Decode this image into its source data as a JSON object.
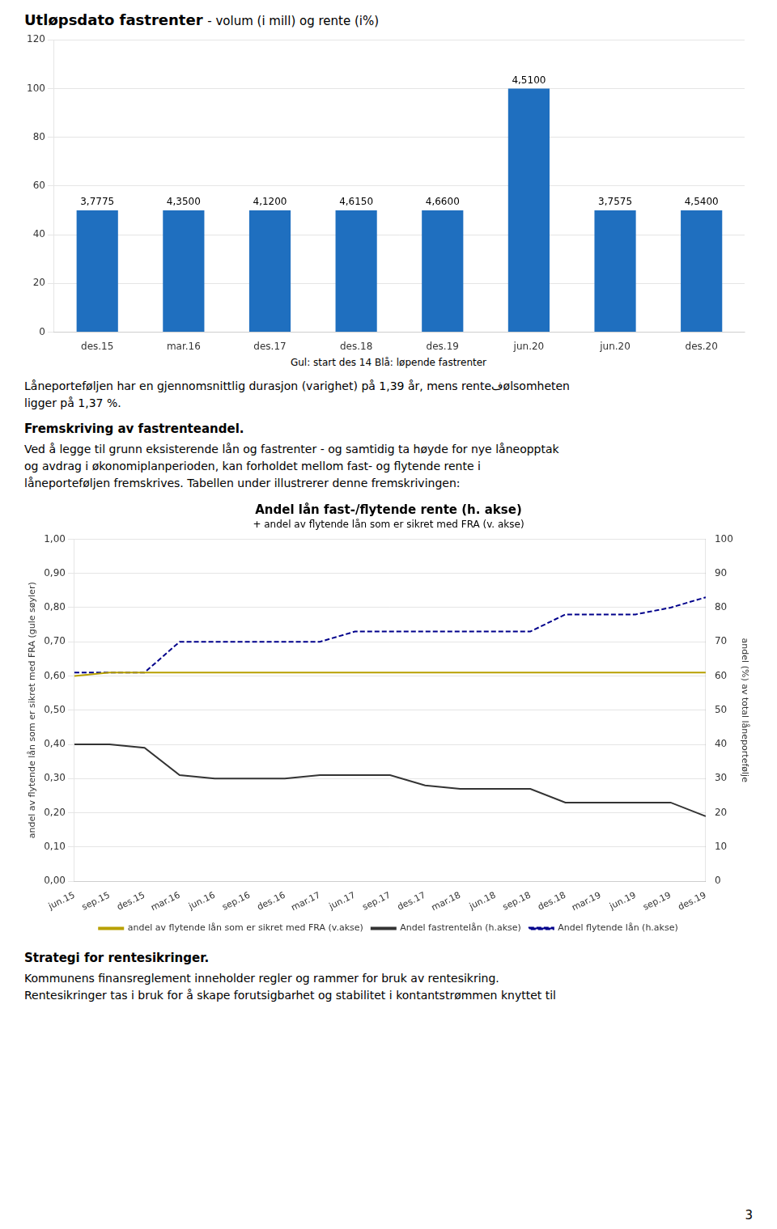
{
  "chart_data": [
    {
      "type": "bar",
      "title": "Utløpsdato fastrenter",
      "subtitle": "- volum (i mill) og rente (i%)",
      "categories": [
        "des.15",
        "mar.16",
        "des.17",
        "des.18",
        "des.19",
        "jun.20",
        "jun.20",
        "des.20"
      ],
      "values": [
        50,
        50,
        50,
        50,
        50,
        100,
        50,
        50
      ],
      "annotations": [
        "3,7775",
        "4,3500",
        "4,1200",
        "4,6150",
        "4,6600",
        "4,5100",
        "3,7575",
        "4,5400"
      ],
      "color": "#1F6FBF",
      "ylim": [
        0,
        120
      ],
      "yticks": [
        0,
        20,
        40,
        60,
        80,
        100,
        120
      ],
      "grid": true,
      "note": "Gul: start des 14   Blå: løpende fastrenter"
    },
    {
      "type": "line",
      "title": "Andel lån fast-/flytende rente (h. akse)",
      "subtitle": "+ andel av flytende lån som er sikret med FRA (v. akse)",
      "categories": [
        "jun.15",
        "sep.15",
        "des.15",
        "mar.16",
        "jun.16",
        "sep.16",
        "des.16",
        "mar.17",
        "jun.17",
        "sep.17",
        "des.17",
        "mar.18",
        "jun.18",
        "sep.18",
        "des.18",
        "mar.19",
        "jun.19",
        "sep.19",
        "des.19"
      ],
      "series": [
        {
          "name": "andel av flytende lån som er sikret med FRA (v.akse)",
          "color": "#b8a000",
          "axis": "y",
          "line_style": "solid",
          "values": [
            0.6,
            0.61,
            0.61,
            0.61,
            0.61,
            0.61,
            0.61,
            0.61,
            0.61,
            0.61,
            0.61,
            0.61,
            0.61,
            0.61,
            0.61,
            0.61,
            0.61,
            0.61,
            0.61
          ]
        },
        {
          "name": "Andel fastrentelån (h.akse)",
          "color": "#333333",
          "axis": "y2",
          "line_style": "solid",
          "values": [
            40,
            40,
            39,
            31,
            30,
            30,
            30,
            31,
            31,
            31,
            28,
            27,
            27,
            27,
            23,
            23,
            23,
            23,
            19
          ]
        },
        {
          "name": "Andel flytende lån (h.akse)",
          "color": "#00008B",
          "axis": "y2",
          "line_style": "dashed",
          "values": [
            61,
            61,
            61,
            70,
            70,
            70,
            70,
            70,
            73,
            73,
            73,
            73,
            73,
            73,
            78,
            78,
            78,
            80,
            83
          ]
        }
      ],
      "ylabel": "andel av flytende lån som er sikret med FRA (gule søyler)",
      "y2label": "andel (%) av total låneportefølje",
      "ylim": [
        0.0,
        1.0
      ],
      "yticks": [
        {
          "value": 0.0,
          "label": "0,00"
        },
        {
          "value": 0.1,
          "label": "0,10"
        },
        {
          "value": 0.2,
          "label": "0,20"
        },
        {
          "value": 0.3,
          "label": "0,30"
        },
        {
          "value": 0.4,
          "label": "0,40"
        },
        {
          "value": 0.5,
          "label": "0,50"
        },
        {
          "value": 0.6,
          "label": "0,60"
        },
        {
          "value": 0.7,
          "label": "0,70"
        },
        {
          "value": 0.8,
          "label": "0,80"
        },
        {
          "value": 0.9,
          "label": "0,90"
        },
        {
          "value": 1.0,
          "label": "1,00"
        }
      ],
      "y2lim": [
        0,
        100
      ],
      "y2ticks": [
        0,
        10,
        20,
        30,
        40,
        50,
        60,
        70,
        80,
        90,
        100
      ],
      "grid": true,
      "legend": "bottom"
    }
  ],
  "paragraph": [
    "Låneporteføljen har en gjennomsnittlig durasjon (varighet) på 1,39 år, mens renteفølsomheten",
    "ligger på 1,37 %."
  ],
  "heading": "Fremskriving av fastrenteandel.",
  "body": [
    "Ved å legge til grunn eksisterende lån og fastrenter - og samtidig ta høyde for nye låneopptak",
    "og avdrag i økonomiplanperioden, kan forholdet mellom fast- og flytende rente i",
    "låneporteføljen fremskrives. Tabellen under illustrerer denne fremskrivingen:"
  ],
  "footer_title": "Strategi for rentesikringer.",
  "footer_body": [
    "Kommunens finansreglement inneholder regler og rammer for bruk av rentesikring.",
    "Rentesikringer tas i bruk for å skape forutsigbarhet og stabilitet i kontantstrømmen knyttet til"
  ],
  "page_number": "3"
}
